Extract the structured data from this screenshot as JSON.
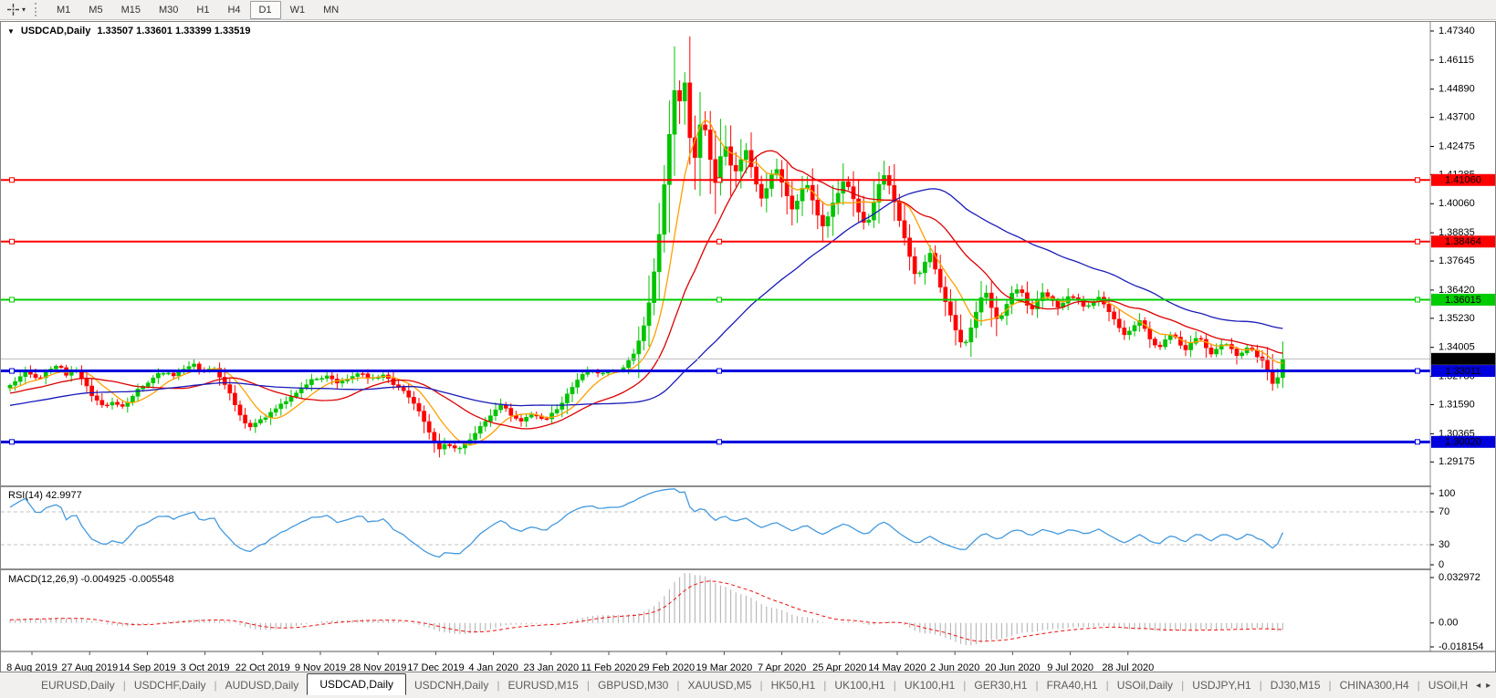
{
  "icons": {
    "dropdown": "▾",
    "window_menu": "▼",
    "tab_scroll_left": "◂",
    "tab_scroll_right": "▸"
  },
  "toolbar": {
    "timeframes": [
      "M1",
      "M5",
      "M15",
      "M30",
      "H1",
      "H4",
      "D1",
      "W1",
      "MN"
    ],
    "active_timeframe": "D1"
  },
  "chart": {
    "title": "USDCAD,Daily",
    "ohlc": "1.33507 1.33601 1.33399 1.33519",
    "price_axis": [
      "1.47340",
      "1.46115",
      "1.44890",
      "1.43700",
      "1.42475",
      "1.41285",
      "1.40060",
      "1.38835",
      "1.37645",
      "1.36420",
      "1.35230",
      "1.34005",
      "1.32780",
      "1.31590",
      "1.30365",
      "1.29175"
    ],
    "current_price": {
      "label": "1.33519",
      "value": 1.33519,
      "bg": "#000000",
      "line_color": "#bdbdbd"
    },
    "hlines": [
      {
        "label": "1.41060",
        "value": 1.4106,
        "color": "#ff0000",
        "width": 2
      },
      {
        "label": "1.38464",
        "value": 1.38464,
        "color": "#ff0000",
        "width": 2
      },
      {
        "label": "1.36015",
        "value": 1.36015,
        "color": "#00cc00",
        "width": 2
      },
      {
        "label": "1.33011",
        "value": 1.33011,
        "color": "#0000dd",
        "width": 3
      },
      {
        "label": "1.30020",
        "value": 1.3002,
        "color": "#0000dd",
        "width": 3
      }
    ],
    "dates": [
      "8 Aug 2019",
      "27 Aug 2019",
      "14 Sep 2019",
      "3 Oct 2019",
      "22 Oct 2019",
      "9 Nov 2019",
      "28 Nov 2019",
      "17 Dec 2019",
      "4 Jan 2020",
      "23 Jan 2020",
      "11 Feb 2020",
      "29 Feb 2020",
      "19 Mar 2020",
      "7 Apr 2020",
      "25 Apr 2020",
      "14 May 2020",
      "2 Jun 2020",
      "20 Jun 2020",
      "9 Jul 2020",
      "28 Jul 2020"
    ],
    "colors": {
      "bull": "#00c400",
      "bear": "#ff0000",
      "ma_fast": "#ffa000",
      "ma_mid": "#dd0000",
      "ma_slow": "#1a1ab8",
      "rsi_line": "#4499dd",
      "macd_hist": "#b4b4b4",
      "macd_signal": "#ee1111",
      "grid_dash": "#c3c3c3",
      "separator": "#8c8c8c",
      "axis_line": "#555555"
    }
  },
  "rsi": {
    "label": "RSI(14) 42.9977",
    "period": 14,
    "last_value": 42.9977,
    "scale": [
      {
        "label": "100",
        "value": 100
      },
      {
        "label": "70",
        "value": 70
      },
      {
        "label": "30",
        "value": 30
      },
      {
        "label": "0",
        "value": 0
      }
    ],
    "dashed_levels": [
      70,
      30
    ]
  },
  "macd": {
    "label": "MACD(12,26,9) -0.004925 -0.005548",
    "fast": 12,
    "slow": 26,
    "signal": 9,
    "last_main": -0.004925,
    "last_signal": -0.005548,
    "scale": [
      {
        "label": "0.032972",
        "value": 0.032972
      },
      {
        "label": "0.00",
        "value": 0
      },
      {
        "label": "-0.018154",
        "value": -0.018154
      }
    ]
  },
  "tabs": {
    "items": [
      "EURUSD,Daily",
      "USDCHF,Daily",
      "AUDUSD,Daily",
      "USDCAD,Daily",
      "USDCNH,Daily",
      "EURUSD,M15",
      "GBPUSD,M30",
      "XAUUSD,M5",
      "HK50,H1",
      "UK100,H1",
      "UK100,H1",
      "GER30,H1",
      "FRA40,H1",
      "USOil,Daily",
      "USDJPY,H1",
      "DJ30,M15",
      "CHINA300,H4",
      "USOil,H"
    ],
    "active": "USDCAD,Daily"
  },
  "chart_data": {
    "type": "candlestick",
    "symbol": "USDCAD",
    "timeframe": "Daily",
    "open": 1.33507,
    "high": 1.33601,
    "low": 1.33399,
    "close": 1.33519,
    "price_range": [
      1.29175,
      1.4734
    ],
    "extreme_high": 1.4669,
    "extreme_low": 1.2952,
    "indicators": [
      "SMA fast (orange)",
      "SMA mid (red)",
      "SMA slow (blue)",
      "RSI(14)",
      "MACD(12,26,9)"
    ],
    "anchors": [
      [
        10,
        1.3235
      ],
      [
        25,
        1.3298
      ],
      [
        40,
        1.3262
      ],
      [
        52,
        1.3305
      ],
      [
        62,
        1.333
      ],
      [
        72,
        1.3285
      ],
      [
        82,
        1.3308
      ],
      [
        92,
        1.3255
      ],
      [
        102,
        1.3185
      ],
      [
        112,
        1.3148
      ],
      [
        122,
        1.3175
      ],
      [
        135,
        1.3152
      ],
      [
        150,
        1.323
      ],
      [
        162,
        1.3258
      ],
      [
        175,
        1.33
      ],
      [
        188,
        1.3282
      ],
      [
        198,
        1.331
      ],
      [
        210,
        1.3328
      ],
      [
        222,
        1.33
      ],
      [
        232,
        1.3318
      ],
      [
        242,
        1.327
      ],
      [
        252,
        1.32
      ],
      [
        262,
        1.312
      ],
      [
        272,
        1.3058
      ],
      [
        282,
        1.3088
      ],
      [
        295,
        1.3125
      ],
      [
        310,
        1.3165
      ],
      [
        325,
        1.321
      ],
      [
        340,
        1.3258
      ],
      [
        355,
        1.3282
      ],
      [
        368,
        1.3255
      ],
      [
        380,
        1.3268
      ],
      [
        392,
        1.329
      ],
      [
        405,
        1.3268
      ],
      [
        418,
        1.3285
      ],
      [
        428,
        1.3255
      ],
      [
        440,
        1.322
      ],
      [
        452,
        1.3165
      ],
      [
        462,
        1.3105
      ],
      [
        472,
        1.301
      ],
      [
        480,
        1.2978
      ],
      [
        490,
        1.2992
      ],
      [
        500,
        1.2968
      ],
      [
        510,
        1.2998
      ],
      [
        522,
        1.3048
      ],
      [
        535,
        1.311
      ],
      [
        548,
        1.316
      ],
      [
        558,
        1.3118
      ],
      [
        570,
        1.3092
      ],
      [
        582,
        1.312
      ],
      [
        595,
        1.3098
      ],
      [
        608,
        1.3128
      ],
      [
        620,
        1.32
      ],
      [
        632,
        1.3268
      ],
      [
        645,
        1.3298
      ],
      [
        658,
        1.3288
      ],
      [
        670,
        1.3302
      ],
      [
        682,
        1.331
      ],
      [
        690,
        1.3355
      ],
      [
        698,
        1.3412
      ],
      [
        706,
        1.351
      ],
      [
        713,
        1.365
      ],
      [
        719,
        1.381
      ],
      [
        725,
        1.401
      ],
      [
        730,
        1.421
      ],
      [
        735,
        1.439
      ],
      [
        739,
        1.452
      ],
      [
        743,
        1.442
      ],
      [
        747,
        1.457
      ],
      [
        751,
        1.447
      ],
      [
        755,
        1.428
      ],
      [
        759,
        1.416
      ],
      [
        764,
        1.43
      ],
      [
        768,
        1.439
      ],
      [
        773,
        1.429
      ],
      [
        778,
        1.417
      ],
      [
        783,
        1.409
      ],
      [
        788,
        1.42
      ],
      [
        793,
        1.426
      ],
      [
        798,
        1.42
      ],
      [
        803,
        1.412
      ],
      [
        810,
        1.418
      ],
      [
        816,
        1.424
      ],
      [
        822,
        1.416
      ],
      [
        828,
        1.408
      ],
      [
        835,
        1.402
      ],
      [
        842,
        1.41
      ],
      [
        848,
        1.417
      ],
      [
        855,
        1.41
      ],
      [
        862,
        1.403
      ],
      [
        868,
        1.3975
      ],
      [
        875,
        1.404
      ],
      [
        882,
        1.41
      ],
      [
        888,
        1.403
      ],
      [
        895,
        1.395
      ],
      [
        902,
        1.3905
      ],
      [
        910,
        1.399
      ],
      [
        918,
        1.406
      ],
      [
        925,
        1.411
      ],
      [
        932,
        1.404
      ],
      [
        940,
        1.396
      ],
      [
        948,
        1.391
      ],
      [
        956,
        1.4
      ],
      [
        963,
        1.41
      ],
      [
        970,
        1.413
      ],
      [
        977,
        1.404
      ],
      [
        984,
        1.394
      ],
      [
        991,
        1.385
      ],
      [
        998,
        1.374
      ],
      [
        1005,
        1.369
      ],
      [
        1012,
        1.376
      ],
      [
        1018,
        1.38
      ],
      [
        1025,
        1.371
      ],
      [
        1032,
        1.362
      ],
      [
        1040,
        1.354
      ],
      [
        1047,
        1.346
      ],
      [
        1054,
        1.3395
      ],
      [
        1060,
        1.345
      ],
      [
        1066,
        1.353
      ],
      [
        1073,
        1.36
      ],
      [
        1080,
        1.363
      ],
      [
        1086,
        1.3555
      ],
      [
        1092,
        1.3515
      ],
      [
        1100,
        1.356
      ],
      [
        1108,
        1.3625
      ],
      [
        1115,
        1.3655
      ],
      [
        1122,
        1.36
      ],
      [
        1128,
        1.355
      ],
      [
        1135,
        1.3595
      ],
      [
        1142,
        1.364
      ],
      [
        1150,
        1.3605
      ],
      [
        1158,
        1.357
      ],
      [
        1165,
        1.36
      ],
      [
        1172,
        1.3625
      ],
      [
        1180,
        1.3595
      ],
      [
        1188,
        1.356
      ],
      [
        1195,
        1.359
      ],
      [
        1202,
        1.362
      ],
      [
        1210,
        1.3575
      ],
      [
        1218,
        1.353
      ],
      [
        1225,
        1.348
      ],
      [
        1232,
        1.3445
      ],
      [
        1240,
        1.348
      ],
      [
        1247,
        1.3515
      ],
      [
        1254,
        1.347
      ],
      [
        1261,
        1.3425
      ],
      [
        1268,
        1.3395
      ],
      [
        1276,
        1.3435
      ],
      [
        1283,
        1.3465
      ],
      [
        1290,
        1.3425
      ],
      [
        1297,
        1.3385
      ],
      [
        1304,
        1.3415
      ],
      [
        1311,
        1.3445
      ],
      [
        1318,
        1.3415
      ],
      [
        1325,
        1.3375
      ],
      [
        1332,
        1.3395
      ],
      [
        1340,
        1.3425
      ],
      [
        1347,
        1.3395
      ],
      [
        1354,
        1.3365
      ],
      [
        1361,
        1.3385
      ],
      [
        1368,
        1.3405
      ],
      [
        1375,
        1.337
      ],
      [
        1382,
        1.334
      ],
      [
        1388,
        1.3308
      ],
      [
        1393,
        1.3245
      ],
      [
        1398,
        1.3262
      ],
      [
        1402,
        1.333
      ],
      [
        1406,
        1.33519
      ]
    ]
  }
}
